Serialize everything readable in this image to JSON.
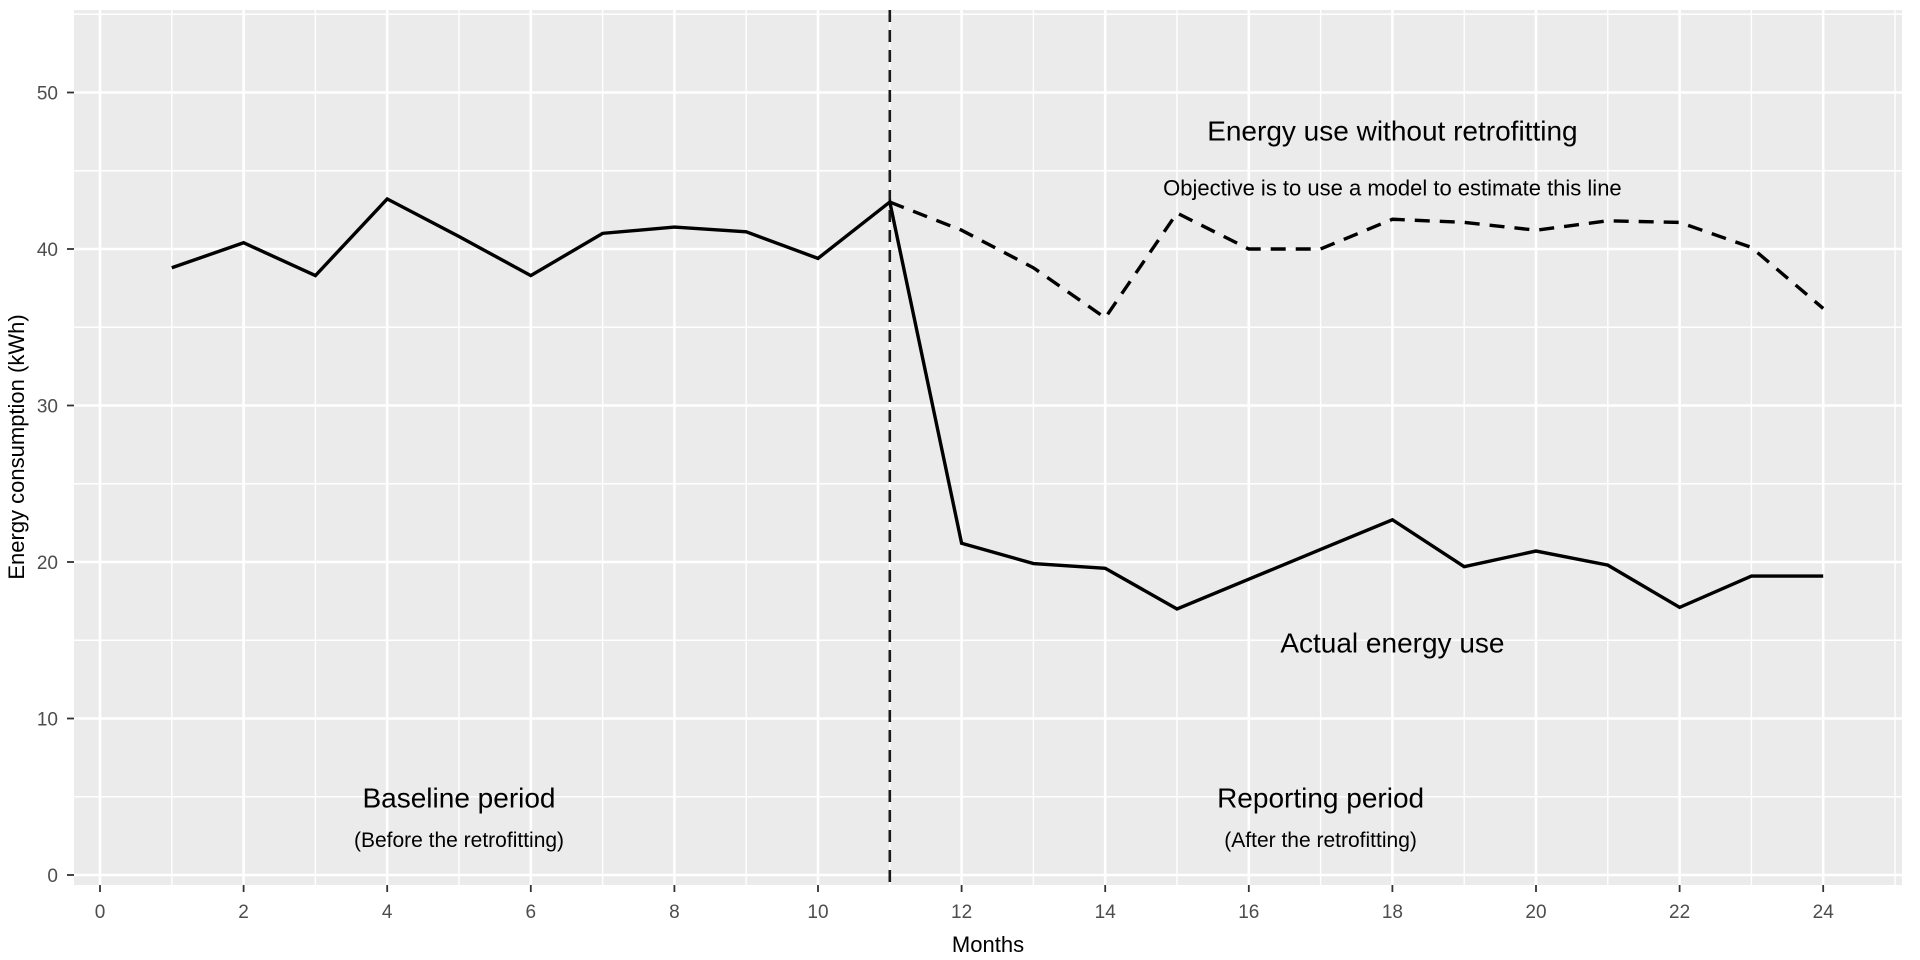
{
  "chart_data": {
    "type": "line",
    "title": "",
    "xlabel": "Months",
    "ylabel": "Energy consumption (kWh)",
    "xlim": [
      0,
      25
    ],
    "ylim": [
      0,
      55.5
    ],
    "x_major_ticks": [
      0,
      2,
      4,
      6,
      8,
      10,
      12,
      14,
      16,
      18,
      20,
      22,
      24
    ],
    "y_major_ticks": [
      0,
      10,
      20,
      30,
      40,
      50
    ],
    "grid": "on",
    "legend_position": "none",
    "panel_background": "#EBEBEB",
    "grid_color": "#FFFFFF",
    "line_color": "#000000",
    "tick_label_color": "#4D4D4D",
    "series": [
      {
        "name": "Actual energy use",
        "style": "solid",
        "x": [
          1,
          2,
          3,
          4,
          5,
          6,
          7,
          8,
          9,
          10,
          11,
          12,
          13,
          14,
          15,
          16,
          17,
          18,
          19,
          20,
          21,
          22,
          23,
          24
        ],
        "values": [
          38.8,
          40.4,
          38.3,
          43.2,
          40.8,
          38.3,
          41.0,
          41.4,
          41.1,
          39.4,
          43.0,
          21.2,
          19.9,
          19.6,
          17.0,
          18.9,
          20.8,
          22.7,
          19.7,
          20.7,
          19.8,
          17.1,
          19.1,
          19.1
        ]
      },
      {
        "name": "Energy use without retrofitting",
        "style": "dashed",
        "x": [
          11,
          12,
          13,
          14,
          15,
          16,
          17,
          18,
          19,
          20,
          21,
          22,
          23,
          24
        ],
        "values": [
          43.0,
          41.2,
          38.8,
          35.6,
          42.3,
          40.0,
          40.0,
          41.9,
          41.7,
          41.2,
          41.8,
          41.7,
          40.1,
          36.2
        ]
      }
    ],
    "vline": {
      "x": 11,
      "style": "dashed"
    },
    "annotations": [
      {
        "id": "energy-without-retrofitting-label",
        "text": "Energy use without retrofitting",
        "x": 18,
        "y": 47.5,
        "size": "lg"
      },
      {
        "id": "objective-label",
        "text": "Objective is to use a model to estimate this line",
        "x": 18,
        "y": 44.0,
        "size": "md"
      },
      {
        "id": "actual-energy-use-label",
        "text": "Actual energy use",
        "x": 18,
        "y": 14.8,
        "size": "lg"
      },
      {
        "id": "baseline-period-label",
        "text": "Baseline period",
        "x": 5,
        "y": 4.9,
        "size": "lg"
      },
      {
        "id": "baseline-period-sublabel",
        "text": "(Before the retrofitting)",
        "x": 5,
        "y": 2.35,
        "size": "sm"
      },
      {
        "id": "reporting-period-label",
        "text": "Reporting period",
        "x": 17,
        "y": 4.9,
        "size": "lg"
      },
      {
        "id": "reporting-period-sublabel",
        "text": "(After the retrofitting)",
        "x": 17,
        "y": 2.35,
        "size": "sm"
      }
    ]
  }
}
